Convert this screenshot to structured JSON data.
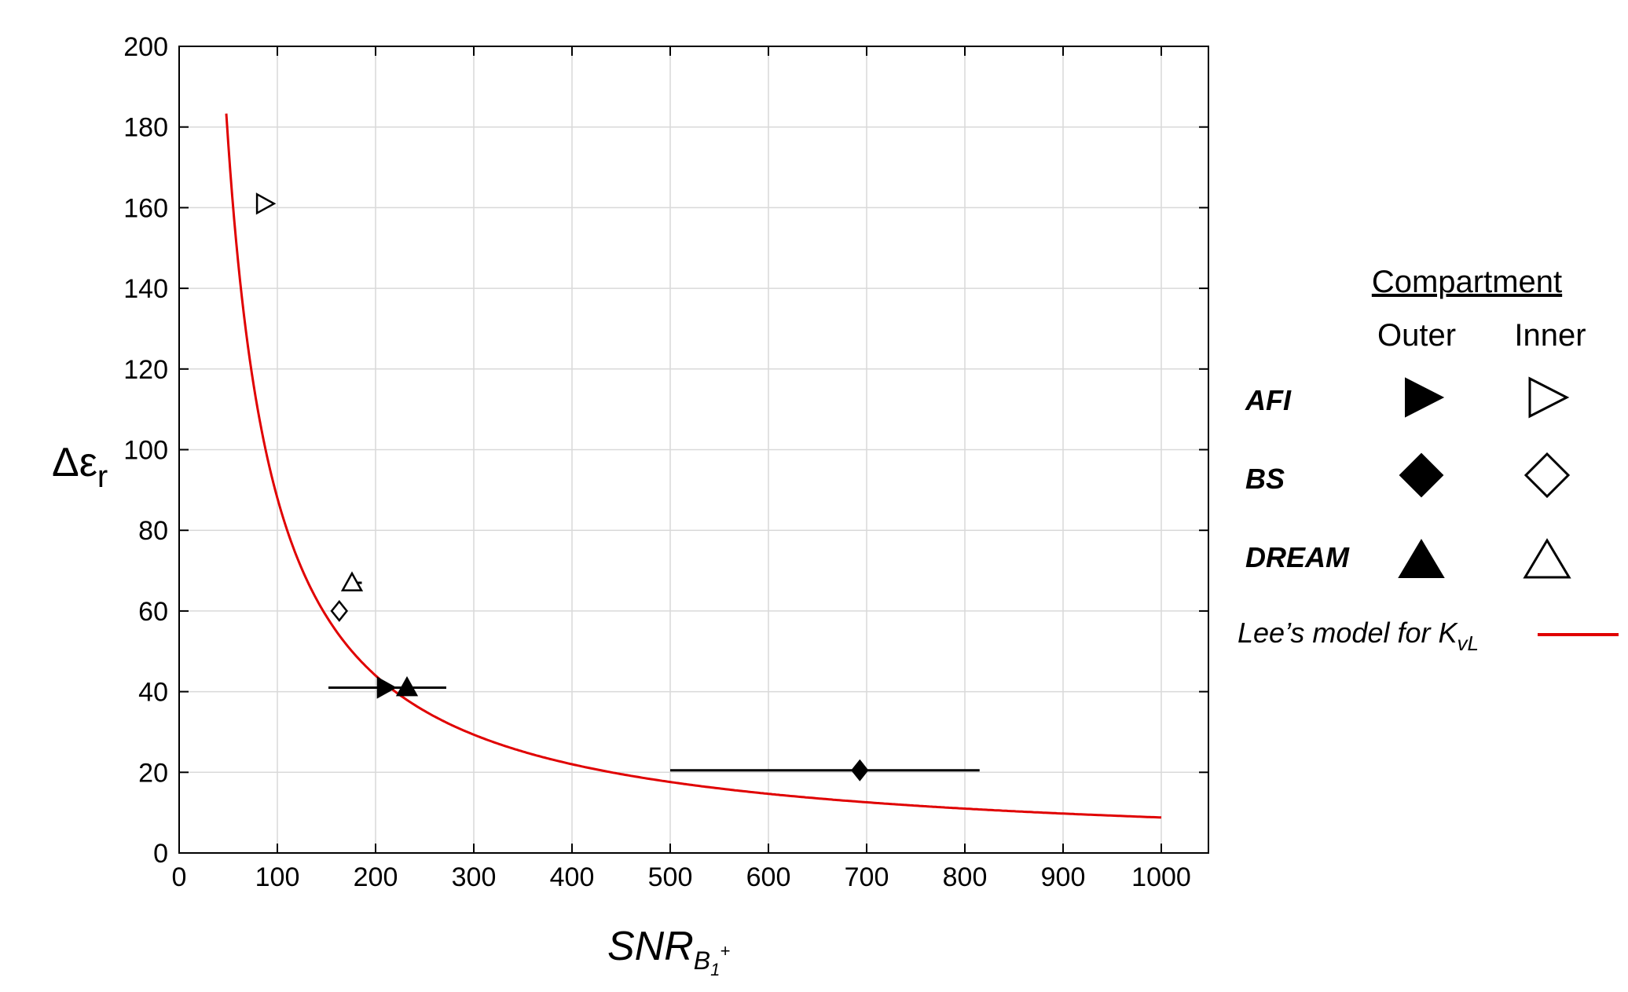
{
  "chart_data": {
    "type": "scatter",
    "title": "",
    "xlabel": "SNR",
    "xlabel_subscript": "B",
    "xlabel_subscript_index": "1",
    "xlabel_superscript": "+",
    "ylabel": "Δε",
    "ylabel_subscript": "r",
    "xlim": [
      0,
      1050
    ],
    "ylim": [
      0,
      200
    ],
    "xticks": [
      "0",
      "100",
      "200",
      "300",
      "400",
      "500",
      "600",
      "700",
      "800",
      "900",
      "1000"
    ],
    "yticks": [
      "0",
      "20",
      "40",
      "60",
      "80",
      "100",
      "120",
      "140",
      "160",
      "180",
      "200"
    ],
    "grid": true,
    "legend_placement": "right",
    "legend": {
      "title": "Compartment",
      "columns": [
        "Outer",
        "Inner"
      ],
      "rows": [
        {
          "method": "AFI",
          "outer_marker": "filled-right-triangle",
          "inner_marker": "open-right-triangle"
        },
        {
          "method": "BS",
          "outer_marker": "filled-diamond",
          "inner_marker": "open-diamond"
        },
        {
          "method": "DREAM",
          "outer_marker": "filled-up-triangle",
          "inner_marker": "open-up-triangle"
        }
      ],
      "model_label": "Lee’s model for K",
      "model_label_sub": "vL"
    },
    "series": [
      {
        "method": "AFI",
        "compartment": "Outer",
        "marker": "filled-right-triangle",
        "x": 210,
        "y": 41,
        "xerr_low": 152,
        "xerr_high": 250
      },
      {
        "method": "AFI",
        "compartment": "Inner",
        "marker": "open-right-triangle",
        "x": 87,
        "y": 161
      },
      {
        "method": "BS",
        "compartment": "Outer",
        "marker": "filled-diamond",
        "x": 693,
        "y": 20.5,
        "xerr_low": 500,
        "xerr_high": 815
      },
      {
        "method": "BS",
        "compartment": "Inner",
        "marker": "open-diamond",
        "x": 163,
        "y": 60
      },
      {
        "method": "DREAM",
        "compartment": "Outer",
        "marker": "filled-up-triangle",
        "x": 232,
        "y": 41,
        "xerr_low": 168,
        "xerr_high": 272
      },
      {
        "method": "DREAM",
        "compartment": "Inner",
        "marker": "open-up-triangle",
        "x": 176,
        "y": 67,
        "xerr_low": 170,
        "xerr_high": 186
      }
    ],
    "model_curve": {
      "name": "Lee’s model for KvL",
      "color": "#e00000",
      "formula": "y = 8800 / x",
      "x_range": [
        48,
        1000
      ]
    },
    "colors": {
      "model_line": "#e00000",
      "markers": "#000000",
      "grid": "#d9d9d9"
    }
  }
}
